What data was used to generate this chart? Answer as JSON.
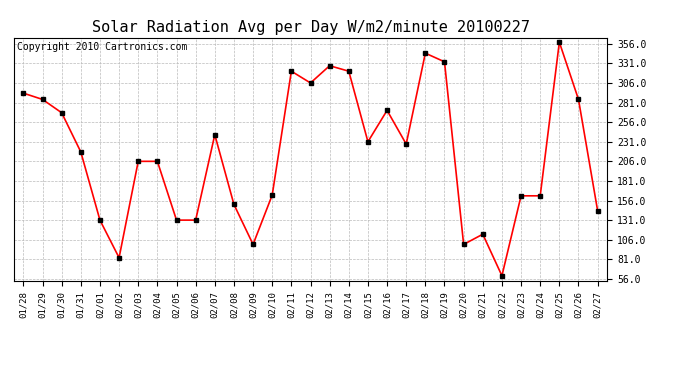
{
  "title": "Solar Radiation Avg per Day W/m2/minute 20100227",
  "copyright": "Copyright 2010 Cartronics.com",
  "dates": [
    "01/28",
    "01/29",
    "01/30",
    "01/31",
    "02/01",
    "02/02",
    "02/03",
    "02/04",
    "02/05",
    "02/06",
    "02/07",
    "02/08",
    "02/09",
    "02/10",
    "02/11",
    "02/12",
    "02/13",
    "02/14",
    "02/15",
    "02/16",
    "02/17",
    "02/18",
    "02/19",
    "02/20",
    "02/21",
    "02/22",
    "02/23",
    "02/24",
    "02/25",
    "02/26",
    "02/27"
  ],
  "values": [
    293,
    285,
    268,
    218,
    131,
    83,
    206,
    206,
    131,
    131,
    240,
    151,
    100,
    163,
    321,
    306,
    328,
    321,
    231,
    271,
    228,
    344,
    333,
    100,
    113,
    60,
    162,
    162,
    358,
    285,
    143
  ],
  "line_color": "#ff0000",
  "marker_color": "#000000",
  "bg_color": "#ffffff",
  "grid_color": "#bbbbbb",
  "yticks": [
    56.0,
    81.0,
    106.0,
    131.0,
    156.0,
    181.0,
    206.0,
    231.0,
    256.0,
    281.0,
    306.0,
    331.0,
    356.0
  ],
  "ymin": 56.0,
  "ymax": 356.0,
  "title_fontsize": 11,
  "copyright_fontsize": 7
}
